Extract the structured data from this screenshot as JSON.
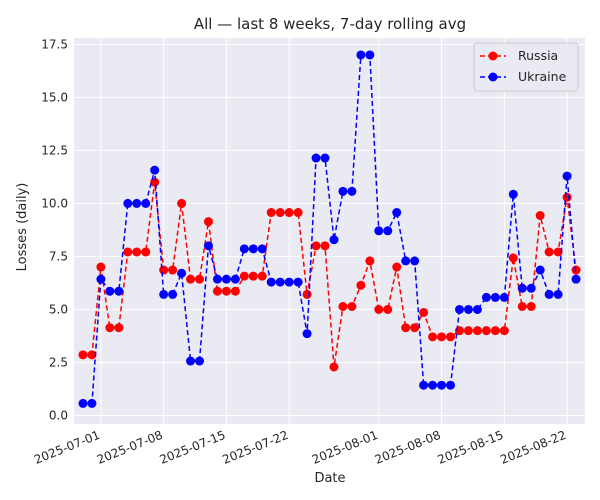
{
  "chart_data": {
    "type": "line",
    "title": "All — last 8 weeks, 7-day rolling avg",
    "xlabel": "Date",
    "ylabel": "Losses (daily)",
    "x_type": "date",
    "xlim": [
      "2025-06-28",
      "2025-08-24"
    ],
    "ylim": [
      -0.4,
      17.8
    ],
    "yticks": [
      0.0,
      2.5,
      5.0,
      7.5,
      10.0,
      12.5,
      15.0,
      17.5
    ],
    "ytick_labels": [
      "0.0",
      "2.5",
      "5.0",
      "7.5",
      "10.0",
      "12.5",
      "15.0",
      "17.5"
    ],
    "xticks": [
      "2025-07-01",
      "2025-07-08",
      "2025-07-15",
      "2025-07-22",
      "2025-08-01",
      "2025-08-08",
      "2025-08-15",
      "2025-08-22"
    ],
    "xtick_labels": [
      "2025-07-01",
      "2025-07-08",
      "2025-07-15",
      "2025-07-22",
      "2025-08-01",
      "2025-08-08",
      "2025-08-15",
      "2025-08-22"
    ],
    "grid": true,
    "legend_position": "top-right",
    "x": [
      "2025-06-29",
      "2025-06-30",
      "2025-07-01",
      "2025-07-02",
      "2025-07-03",
      "2025-07-04",
      "2025-07-05",
      "2025-07-06",
      "2025-07-07",
      "2025-07-08",
      "2025-07-09",
      "2025-07-10",
      "2025-07-11",
      "2025-07-12",
      "2025-07-13",
      "2025-07-14",
      "2025-07-15",
      "2025-07-16",
      "2025-07-17",
      "2025-07-18",
      "2025-07-19",
      "2025-07-20",
      "2025-07-21",
      "2025-07-22",
      "2025-07-23",
      "2025-07-24",
      "2025-07-25",
      "2025-07-26",
      "2025-07-27",
      "2025-07-28",
      "2025-07-29",
      "2025-07-30",
      "2025-07-31",
      "2025-08-01",
      "2025-08-02",
      "2025-08-03",
      "2025-08-04",
      "2025-08-05",
      "2025-08-06",
      "2025-08-07",
      "2025-08-08",
      "2025-08-09",
      "2025-08-10",
      "2025-08-11",
      "2025-08-12",
      "2025-08-13",
      "2025-08-14",
      "2025-08-15",
      "2025-08-16",
      "2025-08-17",
      "2025-08-18",
      "2025-08-19",
      "2025-08-20",
      "2025-08-21",
      "2025-08-22",
      "2025-08-23"
    ],
    "series": [
      {
        "name": "Russia",
        "color": "#ff0000",
        "marker": "circle",
        "line_style": "dashed",
        "values": [
          2.86,
          2.86,
          7.0,
          4.14,
          4.14,
          7.71,
          7.71,
          7.71,
          11.0,
          6.86,
          6.86,
          10.0,
          6.43,
          6.43,
          9.14,
          5.86,
          5.86,
          5.86,
          6.57,
          6.57,
          6.57,
          9.57,
          9.57,
          9.57,
          9.57,
          5.71,
          8.0,
          8.0,
          2.29,
          5.14,
          5.14,
          6.14,
          7.29,
          5.0,
          5.0,
          7.0,
          4.14,
          4.14,
          4.86,
          3.71,
          3.71,
          3.71,
          4.0,
          4.0,
          4.0,
          4.0,
          4.0,
          4.0,
          7.43,
          5.14,
          5.14,
          9.43,
          7.71,
          7.71,
          10.29,
          6.86
        ]
      },
      {
        "name": "Ukraine",
        "color": "#0000ff",
        "marker": "circle",
        "line_style": "dashed",
        "values": [
          0.57,
          0.57,
          6.43,
          5.86,
          5.86,
          10.0,
          10.0,
          10.0,
          11.57,
          5.71,
          5.71,
          6.71,
          2.57,
          2.57,
          8.0,
          6.43,
          6.43,
          6.43,
          7.86,
          7.86,
          7.86,
          6.29,
          6.29,
          6.29,
          6.29,
          3.86,
          12.14,
          12.14,
          8.29,
          10.57,
          10.57,
          17.0,
          17.0,
          8.71,
          8.71,
          9.57,
          7.29,
          7.29,
          1.43,
          1.43,
          1.43,
          1.43,
          5.0,
          5.0,
          5.0,
          5.57,
          5.57,
          5.57,
          10.43,
          6.0,
          6.0,
          6.86,
          5.71,
          5.71,
          11.29,
          6.43
        ]
      }
    ]
  }
}
